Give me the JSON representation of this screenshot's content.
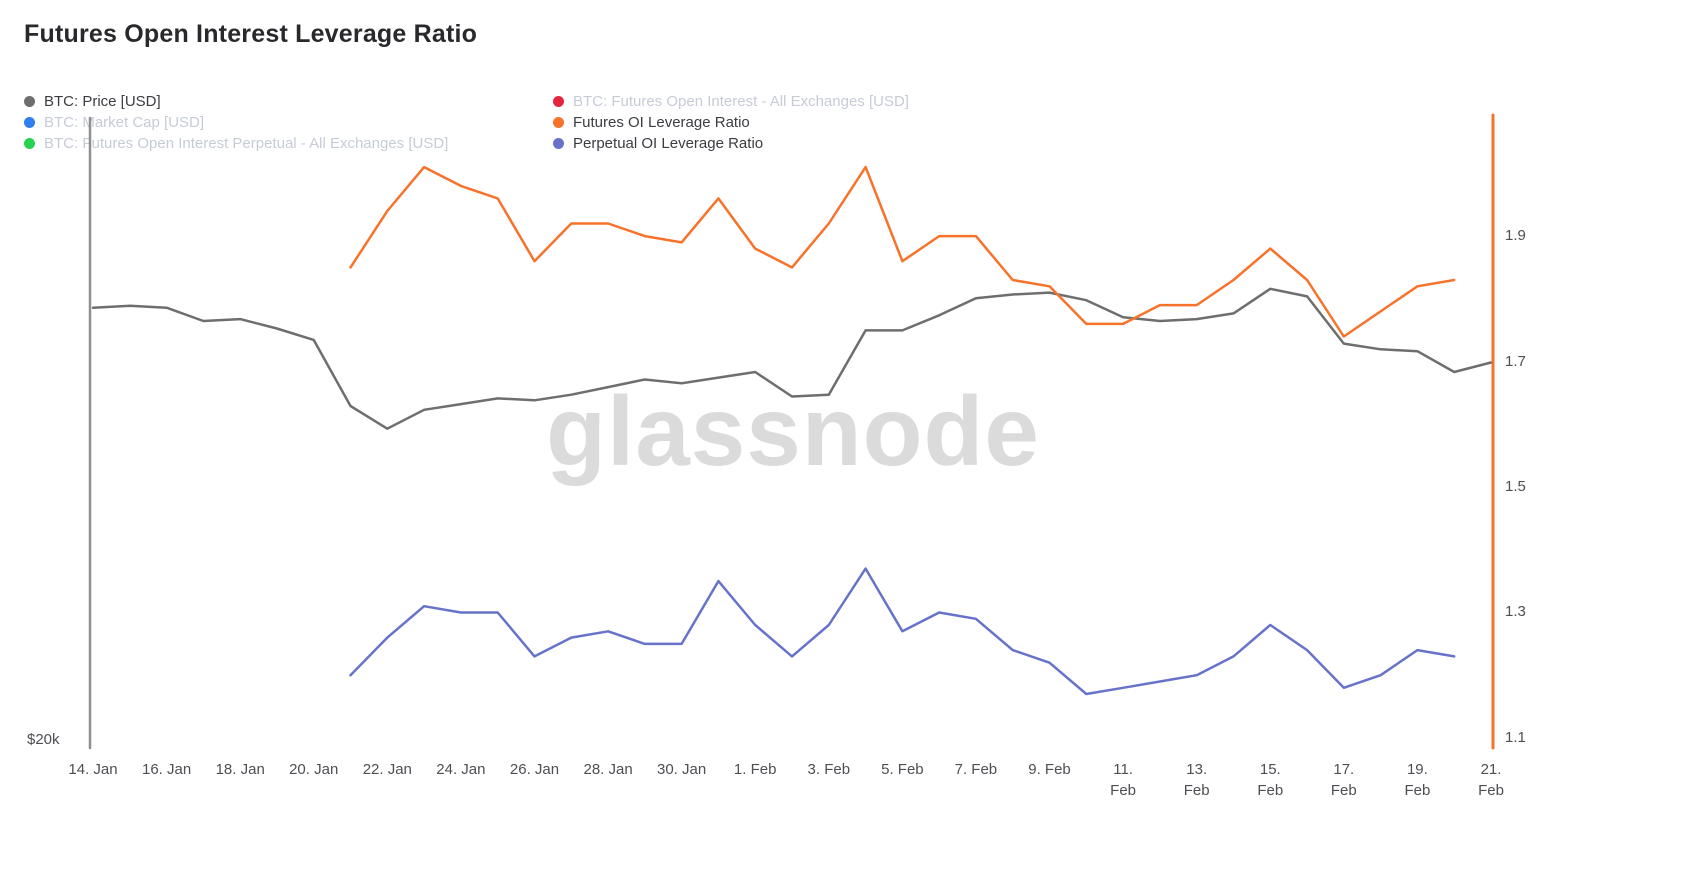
{
  "title": "Futures Open Interest Leverage Ratio",
  "watermark": "glassnode",
  "legend": {
    "columns": [
      {
        "items": [
          {
            "label": "BTC: Price [USD]",
            "dot_color": "#6e6e6e",
            "active": true
          },
          {
            "label": "BTC: Market Cap [USD]",
            "dot_color": "#2f80ed",
            "active": false
          },
          {
            "label": "BTC: Futures Open Interest Perpetual - All Exchanges [USD]",
            "dot_color": "#27d34f",
            "active": false
          }
        ]
      },
      {
        "items": [
          {
            "label": "BTC: Futures Open Interest - All Exchanges [USD]",
            "dot_color": "#e4273f",
            "active": false
          },
          {
            "label": "Futures OI Leverage Ratio",
            "dot_color": "#f7722a",
            "active": true
          },
          {
            "label": "Perpetual OI Leverage Ratio",
            "dot_color": "#6673c9",
            "active": true
          }
        ]
      }
    ]
  },
  "chart_data": {
    "type": "line",
    "title": "Futures Open Interest Leverage Ratio",
    "grid": false,
    "legend_position": "top-left, two columns",
    "x_dates": [
      "14 Jan",
      "15 Jan",
      "16 Jan",
      "17 Jan",
      "18 Jan",
      "19 Jan",
      "20 Jan",
      "21 Jan",
      "22 Jan",
      "23 Jan",
      "24 Jan",
      "25 Jan",
      "26 Jan",
      "27 Jan",
      "28 Jan",
      "29 Jan",
      "30 Jan",
      "31 Jan",
      "1 Feb",
      "2 Feb",
      "3 Feb",
      "4 Feb",
      "5 Feb",
      "6 Feb",
      "7 Feb",
      "8 Feb",
      "9 Feb",
      "10 Feb",
      "11 Feb",
      "12 Feb",
      "13 Feb",
      "14 Feb",
      "15 Feb",
      "16 Feb",
      "17 Feb",
      "18 Feb",
      "19 Feb",
      "20 Feb",
      "21 Feb"
    ],
    "x_tick_indices": [
      0,
      2,
      4,
      6,
      8,
      10,
      12,
      14,
      16,
      18,
      20,
      22,
      24,
      26,
      28,
      30,
      32,
      34,
      36,
      38
    ],
    "x_tick_labels": [
      "14. Jan",
      "16. Jan",
      "18. Jan",
      "20. Jan",
      "22. Jan",
      "24. Jan",
      "26. Jan",
      "28. Jan",
      "30. Jan",
      "1. Feb",
      "3. Feb",
      "5. Feb",
      "7. Feb",
      "9. Feb",
      "11.\nFeb",
      "13.\nFeb",
      "15.\nFeb",
      "17.\nFeb",
      "19.\nFeb",
      "21.\nFeb"
    ],
    "left_axis": {
      "visible_label": "$20k",
      "range": [
        20000,
        53500
      ],
      "axis_line_color": "#8f8f8f"
    },
    "right_axis": {
      "tick_labels": [
        "1.9",
        "1.7",
        "1.5",
        "1.3",
        "1.1"
      ],
      "tick_values": [
        1.9,
        1.7,
        1.5,
        1.3,
        1.1
      ],
      "range": [
        1.084,
        2.093
      ],
      "axis_line_color": "#f7722a"
    },
    "series": [
      {
        "name": "BTC: Price [USD]",
        "axis": "left",
        "color": "#6e6e6e",
        "unit": "USD (estimated; only $20k axis label visible)",
        "values": [
          43300,
          43400,
          43300,
          42600,
          42700,
          42200,
          41600,
          38100,
          36900,
          37900,
          38200,
          38500,
          38400,
          38700,
          39100,
          39500,
          39300,
          39600,
          39900,
          38600,
          38700,
          42100,
          42100,
          42900,
          43800,
          44000,
          44100,
          43700,
          42800,
          42600,
          42700,
          43000,
          44300,
          43900,
          41400,
          41100,
          41000,
          39900,
          40400
        ]
      },
      {
        "name": "Futures OI Leverage Ratio",
        "axis": "right",
        "color": "#f7722a",
        "unit": "ratio",
        "values": [
          null,
          null,
          null,
          null,
          null,
          null,
          null,
          1.85,
          1.94,
          2.01,
          1.98,
          1.96,
          1.86,
          1.92,
          1.92,
          1.9,
          1.89,
          1.96,
          1.88,
          1.85,
          1.92,
          2.01,
          1.86,
          1.9,
          1.9,
          1.83,
          1.82,
          1.76,
          1.76,
          1.79,
          1.79,
          1.83,
          1.88,
          1.83,
          1.74,
          1.78,
          1.82,
          1.83,
          null
        ]
      },
      {
        "name": "Perpetual OI Leverage Ratio",
        "axis": "right",
        "color": "#6673c9",
        "unit": "ratio",
        "values": [
          null,
          null,
          null,
          null,
          null,
          null,
          null,
          1.2,
          1.26,
          1.31,
          1.3,
          1.3,
          1.23,
          1.26,
          1.27,
          1.25,
          1.25,
          1.35,
          1.28,
          1.23,
          1.28,
          1.37,
          1.27,
          1.3,
          1.29,
          1.24,
          1.22,
          1.17,
          1.18,
          1.19,
          1.2,
          1.23,
          1.28,
          1.24,
          1.18,
          1.2,
          1.24,
          1.23,
          null
        ]
      }
    ]
  }
}
